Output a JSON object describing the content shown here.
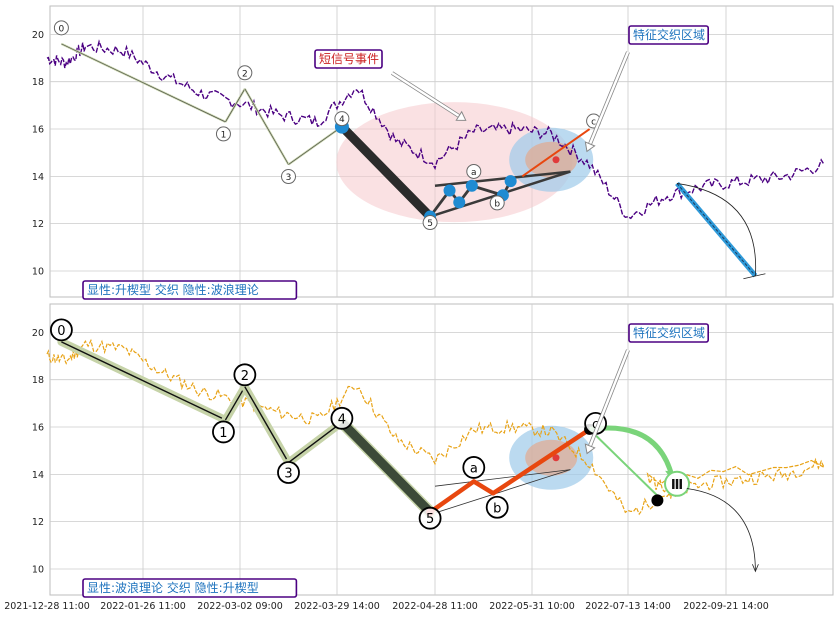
{
  "colors": {
    "grid": "#cccccc",
    "frame": "#bdbdbd",
    "price_top": "#4b0082",
    "price_bottom": "#e8a317",
    "wave_fill": "#c6d3a8",
    "annotation_border": "#4b0082",
    "annotation_text_blue": "#1e73be",
    "annotation_text_red": "#cc2222",
    "impulse_dark": "#2b2b2b",
    "correction_orange": "#e8470f",
    "ellipse_pink": "#f6c9cc",
    "ellipse_blue": "#9ecbea",
    "node_blue": "#1f8bd2",
    "forecast_blue": "#2f9ad9",
    "forecast_green": "#7ad47a"
  },
  "x_axis": {
    "ticks": [
      "2021-12-28 11:00",
      "2022-01-26 11:00",
      "2022-03-02 09:00",
      "2022-03-29 14:00",
      "2022-04-28 11:00",
      "2022-05-31 10:00",
      "2022-07-13 14:00",
      "2022-09-21 14:00"
    ]
  },
  "chart_data": [
    {
      "type": "line",
      "panel": "top",
      "y_ticks": [
        "10",
        "12",
        "14",
        "16",
        "18",
        "20"
      ],
      "ylim": [
        8.9,
        21.2
      ],
      "grid": true,
      "price_series": {
        "x": [
          0,
          0.2,
          0.4,
          0.8,
          1.2,
          1.6,
          2.0,
          2.4,
          2.8,
          3.2,
          3.6,
          4.0,
          4.4,
          4.8,
          5.2,
          5.6,
          6.0,
          6.4,
          6.8,
          7.2,
          7.6,
          8.0
        ],
        "y": [
          19.0,
          18.8,
          19.5,
          19.3,
          18.3,
          17.5,
          17.1,
          16.6,
          16.3,
          17.8,
          15.5,
          14.6,
          15.9,
          16.0,
          15.8,
          14.5,
          12.3,
          13.2,
          13.6,
          13.8,
          14.0,
          14.5
        ]
      },
      "wave_labels": [
        "0",
        "1",
        "2",
        "3",
        "4",
        "5",
        "a",
        "b",
        "c"
      ],
      "wave_points": [
        {
          "label": "0",
          "x": 0.15,
          "y": 19.6
        },
        {
          "label": "1",
          "x": 1.85,
          "y": 16.3
        },
        {
          "label": "2",
          "x": 2.05,
          "y": 17.7
        },
        {
          "label": "3",
          "x": 2.5,
          "y": 14.5
        },
        {
          "label": "4",
          "x": 3.05,
          "y": 16.1
        },
        {
          "label": "5",
          "x": 3.95,
          "y": 12.3
        },
        {
          "label": "a",
          "x": 4.4,
          "y": 13.7
        },
        {
          "label": "b",
          "x": 4.6,
          "y": 13.3
        },
        {
          "label": "c",
          "x": 5.6,
          "y": 16.0
        }
      ],
      "annotations": [
        "短信号事件",
        "特征交织区域",
        "显性:升楔型 交织 隐性:波浪理论"
      ],
      "forecast": {
        "from": [
          6.5,
          13.7
        ],
        "to": [
          7.3,
          9.8
        ]
      }
    },
    {
      "type": "line",
      "panel": "bottom",
      "y_ticks": [
        "10",
        "12",
        "14",
        "16",
        "18",
        "20"
      ],
      "ylim": [
        8.9,
        21.2
      ],
      "grid": true,
      "wave_labels": [
        "0",
        "1",
        "2",
        "3",
        "4",
        "5",
        "a",
        "b",
        "c"
      ],
      "wave_points": [
        {
          "label": "0",
          "x": 0.15,
          "y": 19.6
        },
        {
          "label": "1",
          "x": 1.85,
          "y": 16.3
        },
        {
          "label": "2",
          "x": 2.05,
          "y": 17.7
        },
        {
          "label": "3",
          "x": 2.5,
          "y": 14.5
        },
        {
          "label": "4",
          "x": 3.05,
          "y": 16.2
        },
        {
          "label": "5",
          "x": 3.95,
          "y": 12.4
        },
        {
          "label": "a",
          "x": 4.4,
          "y": 13.7
        },
        {
          "label": "b",
          "x": 4.6,
          "y": 13.2
        },
        {
          "label": "c",
          "x": 5.6,
          "y": 15.9
        }
      ],
      "annotations": [
        "特征交织区域",
        "显性:波浪理论 交织 隐性:升楔型"
      ],
      "forecast_marker": "Ⅲ"
    }
  ]
}
